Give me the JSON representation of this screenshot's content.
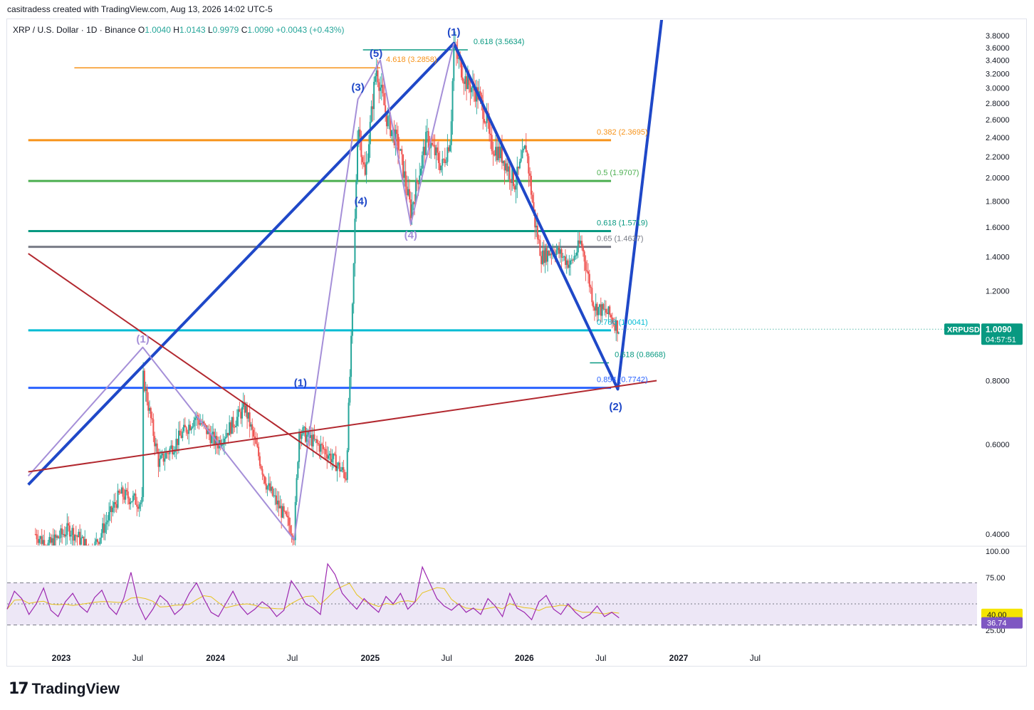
{
  "header": {
    "created_by": "casitradess created with TradingView.com, Aug 13, 2026 14:02 UTC-5"
  },
  "footer": {
    "brand": "TradingView",
    "logo_icon": "tradingview-logo-icon"
  },
  "colors": {
    "candle_up": "#26a69a",
    "candle_down": "#ef5350",
    "wave_blue": "#1f48c8",
    "wave_purple": "#a58fd8",
    "fib_orange": "#f7931a",
    "fib_green": "#4caf50",
    "fib_teal": "#089981",
    "fib_gray": "#787b86",
    "fib_cyan": "#00bcd4",
    "fib_blue": "#2962ff",
    "trend_red": "#b2282f",
    "rsi_line": "#9c27b0",
    "rsi_ma": "#e6c21b",
    "rsi_band": "#ede7f6",
    "price_label": "#089981"
  },
  "chart_data": [
    {
      "type": "candlestick",
      "title": "XRP / U.S. Dollar · 1D · Binance",
      "ohlc": {
        "open_label": "O",
        "open": "1.0040",
        "high_label": "H",
        "high": "1.0143",
        "low_label": "L",
        "low": "0.9979",
        "close_label": "C",
        "close": "1.0090",
        "change": "+0.0043 (+0.43%)"
      },
      "symbol": "XRPUSD",
      "last_price": "1.0090",
      "countdown": "04:57:51",
      "y_scale": "log",
      "ylim": [
        0.38,
        4.1
      ],
      "y_ticks": [
        "3.8000",
        "3.6000",
        "3.4000",
        "3.2000",
        "3.0000",
        "2.8000",
        "2.6000",
        "2.4000",
        "2.2000",
        "2.0000",
        "1.8000",
        "1.6000",
        "1.4000",
        "1.2000",
        "1.0000",
        "0.8000",
        "0.6000",
        "0.4000"
      ],
      "x_ticks": [
        "2023",
        "Jul",
        "2024",
        "Jul",
        "2025",
        "Jul",
        "2026",
        "Jul",
        "2027",
        "Jul"
      ],
      "price_path": [
        {
          "x": "2022-11-01",
          "y": 0.4
        },
        {
          "x": "2022-12-01",
          "y": 0.38
        },
        {
          "x": "2023-01-20",
          "y": 0.41
        },
        {
          "x": "2023-03-15",
          "y": 0.37
        },
        {
          "x": "2023-05-20",
          "y": 0.48
        },
        {
          "x": "2023-07-12",
          "y": 0.46
        },
        {
          "x": "2023-07-13",
          "y": 0.82
        },
        {
          "x": "2023-08-20",
          "y": 0.55
        },
        {
          "x": "2023-11-15",
          "y": 0.68
        },
        {
          "x": "2024-01-05",
          "y": 0.6
        },
        {
          "x": "2024-03-11",
          "y": 0.71
        },
        {
          "x": "2024-05-01",
          "y": 0.5
        },
        {
          "x": "2024-07-05",
          "y": 0.4
        },
        {
          "x": "2024-07-17",
          "y": 0.64
        },
        {
          "x": "2024-09-20",
          "y": 0.58
        },
        {
          "x": "2024-11-05",
          "y": 0.52
        },
        {
          "x": "2024-11-20",
          "y": 1.1
        },
        {
          "x": "2024-12-03",
          "y": 2.6
        },
        {
          "x": "2024-12-20",
          "y": 2.0
        },
        {
          "x": "2025-01-15",
          "y": 3.3
        },
        {
          "x": "2025-02-10",
          "y": 2.6
        },
        {
          "x": "2025-03-10",
          "y": 2.3
        },
        {
          "x": "2025-04-07",
          "y": 1.72
        },
        {
          "x": "2025-05-15",
          "y": 2.4
        },
        {
          "x": "2025-06-20",
          "y": 2.1
        },
        {
          "x": "2025-07-10",
          "y": 2.4
        },
        {
          "x": "2025-07-18",
          "y": 3.6
        },
        {
          "x": "2025-08-15",
          "y": 3.1
        },
        {
          "x": "2025-09-15",
          "y": 2.9
        },
        {
          "x": "2025-10-09",
          "y": 2.5
        },
        {
          "x": "2025-10-10",
          "y": 2.35
        },
        {
          "x": "2025-11-10",
          "y": 2.2
        },
        {
          "x": "2025-12-10",
          "y": 1.95
        },
        {
          "x": "2026-01-05",
          "y": 2.3
        },
        {
          "x": "2026-01-25",
          "y": 1.65
        },
        {
          "x": "2026-02-10",
          "y": 1.4
        },
        {
          "x": "2026-03-15",
          "y": 1.45
        },
        {
          "x": "2026-04-20",
          "y": 1.35
        },
        {
          "x": "2026-05-15",
          "y": 1.5
        },
        {
          "x": "2026-06-15",
          "y": 1.12
        },
        {
          "x": "2026-07-20",
          "y": 1.08
        },
        {
          "x": "2026-08-13",
          "y": 1.009
        }
      ],
      "fib_levels": [
        {
          "label": "0.618 (3.5634)",
          "value": 3.5634,
          "color": "fib_teal",
          "x_start": "2024-12-15",
          "x_end": "2025-08-20"
        },
        {
          "label": "4.618 (3.2858)",
          "value": 3.2858,
          "color": "fib_orange",
          "x_start": "2023-02-01",
          "x_end": "2025-01-25"
        },
        {
          "label": "0.382 (2.3695)",
          "value": 2.3695,
          "color": "fib_orange",
          "x_start": "2022-10-15",
          "x_end": "2026-07-25"
        },
        {
          "label": "0.5 (1.9707)",
          "value": 1.9707,
          "color": "fib_green",
          "x_start": "2022-10-15",
          "x_end": "2026-07-25"
        },
        {
          "label": "0.618 (1.5719)",
          "value": 1.5719,
          "color": "fib_teal",
          "x_start": "2022-10-15",
          "x_end": "2026-07-25"
        },
        {
          "label": "0.65 (1.4637)",
          "value": 1.4637,
          "color": "fib_gray",
          "x_start": "2022-10-15",
          "x_end": "2026-07-25"
        },
        {
          "label": "0.786 (1.0041)",
          "value": 1.0041,
          "color": "fib_cyan",
          "x_start": "2022-10-15",
          "x_end": "2026-07-25"
        },
        {
          "label": "0.618 (0.8668)",
          "value": 0.8668,
          "color": "fib_teal",
          "x_start": "2026-06-05",
          "x_end": "2026-07-20"
        },
        {
          "label": "0.854 (0.7742)",
          "value": 0.7742,
          "color": "fib_blue",
          "x_start": "2022-10-15",
          "x_end": "2026-07-25"
        }
      ],
      "wave_labels": [
        {
          "text": "(1)",
          "x": "2025-07-18",
          "y": 3.8,
          "color": "wave_blue"
        },
        {
          "text": "(5)",
          "x": "2025-01-15",
          "y": 3.45,
          "color": "wave_blue"
        },
        {
          "text": "(3)",
          "x": "2024-12-03",
          "y": 2.96,
          "color": "wave_blue"
        },
        {
          "text": "(4)",
          "x": "2024-12-10",
          "y": 1.77,
          "color": "wave_blue"
        },
        {
          "text": "(1)",
          "x": "2024-07-20",
          "y": 0.78,
          "color": "wave_blue"
        },
        {
          "text": "(2)",
          "x": "2026-08-05",
          "y": 0.7,
          "color": "wave_blue"
        },
        {
          "text": "(4)",
          "x": "2025-04-07",
          "y": 1.52,
          "color": "wave_purple"
        },
        {
          "text": "(1)",
          "x": "2023-07-13",
          "y": 0.95,
          "color": "wave_purple"
        }
      ],
      "wave_lines": [
        {
          "color": "wave_blue",
          "width": 4,
          "points": [
            {
              "x": "2022-10-15",
              "y": 0.5
            },
            {
              "x": "2025-07-18",
              "y": 3.67
            },
            {
              "x": "2026-08-10",
              "y": 0.77
            },
            {
              "x": "2026-11-25",
              "y": 4.3
            }
          ]
        },
        {
          "color": "wave_purple",
          "width": 2,
          "points": [
            {
              "x": "2022-10-15",
              "y": 0.52
            },
            {
              "x": "2023-07-13",
              "y": 0.93
            },
            {
              "x": "2024-07-05",
              "y": 0.39
            },
            {
              "x": "2024-12-03",
              "y": 2.85
            },
            {
              "x": "2025-01-25",
              "y": 3.4
            },
            {
              "x": "2025-04-07",
              "y": 1.62
            },
            {
              "x": "2025-07-18",
              "y": 3.67
            }
          ]
        },
        {
          "color": "trend_red",
          "width": 2,
          "points": [
            {
              "x": "2022-10-15",
              "y": 1.42
            },
            {
              "x": "2024-10-15",
              "y": 0.54
            }
          ]
        },
        {
          "color": "trend_red",
          "width": 2,
          "points": [
            {
              "x": "2022-10-15",
              "y": 0.53
            },
            {
              "x": "2026-11-10",
              "y": 0.8
            }
          ]
        }
      ],
      "x_range": [
        "2022-10-15",
        "2027-10-15"
      ]
    },
    {
      "type": "line",
      "title": "RSI",
      "ylim": [
        20,
        100
      ],
      "y_ticks": [
        "100.00",
        "75.00",
        "25.00"
      ],
      "upper_band": 70,
      "middle_band": 50,
      "lower_band": 30,
      "rsi_value": "36.74",
      "rsi_ma_value": "40.00",
      "series": [
        {
          "values": [
            45,
            62,
            55,
            40,
            50,
            65,
            44,
            38,
            52,
            60,
            48,
            42,
            56,
            63,
            47,
            40,
            55,
            80,
            50,
            35,
            45,
            58,
            52,
            40,
            46,
            60,
            70,
            55,
            42,
            38,
            50,
            62,
            48,
            40,
            45,
            52,
            47,
            38,
            44,
            72,
            62,
            50,
            46,
            40,
            88,
            78,
            60,
            52,
            45,
            55,
            48,
            42,
            57,
            50,
            60,
            45,
            52,
            85,
            70,
            55,
            48,
            44,
            50,
            42,
            46,
            40,
            55,
            48,
            38,
            60,
            46,
            42,
            35,
            52,
            58,
            45,
            40,
            50,
            42,
            36,
            40,
            48,
            38,
            42,
            36.74
          ]
        }
      ]
    }
  ]
}
